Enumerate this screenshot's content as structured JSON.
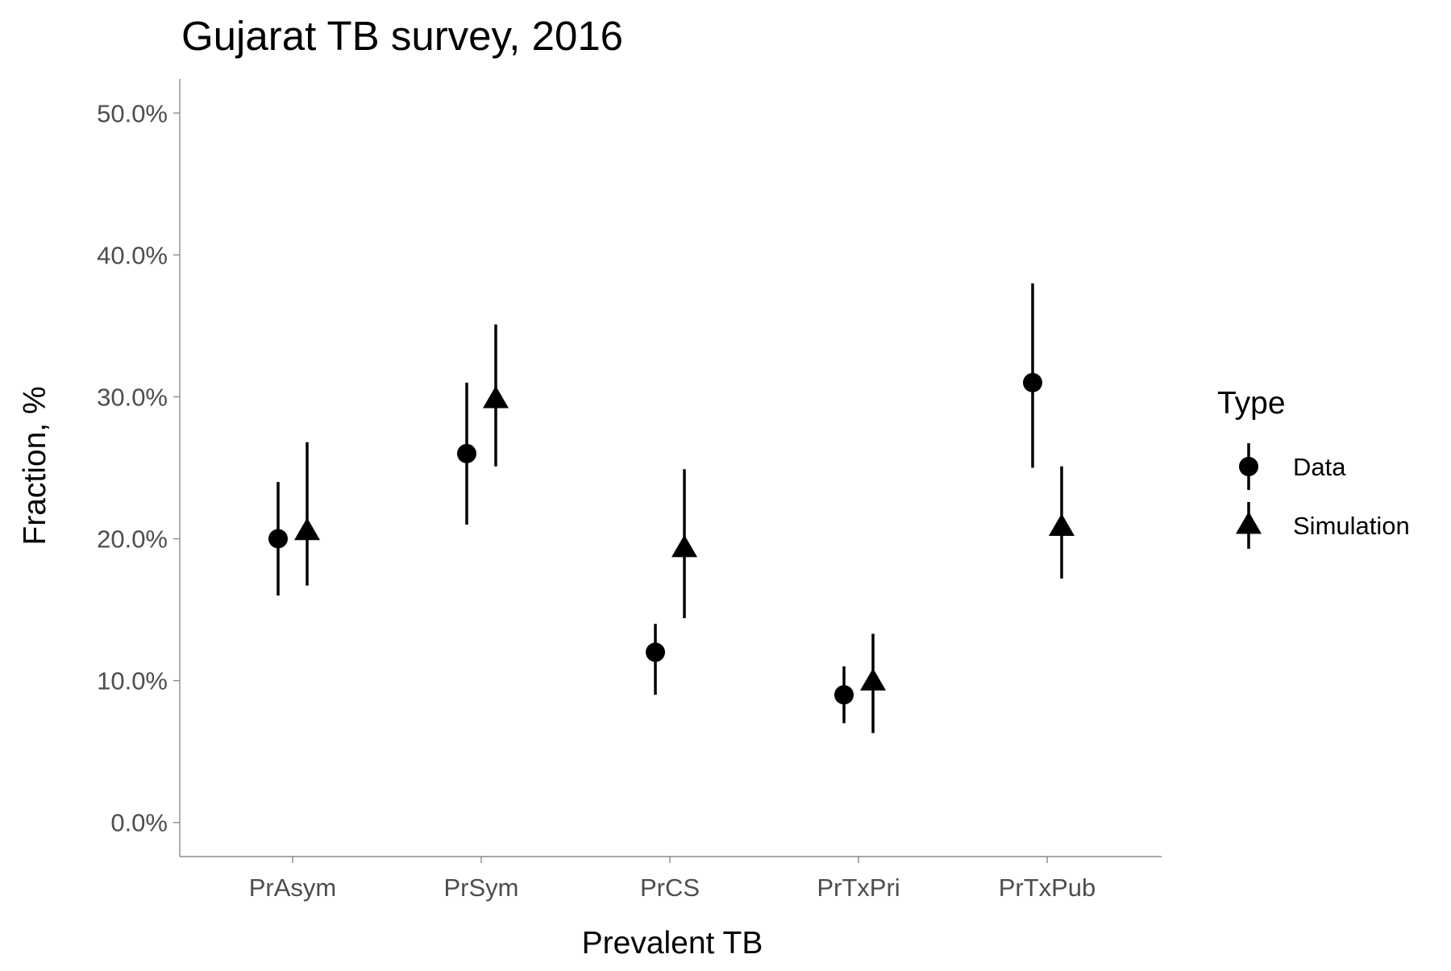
{
  "chart_data": {
    "type": "scatter",
    "title": "Gujarat TB survey, 2016",
    "xlabel": "Prevalent TB",
    "ylabel": "Fraction, %",
    "categories": [
      "PrAsym",
      "PrSym",
      "PrCS",
      "PrTxPri",
      "PrTxPub"
    ],
    "ylim": [
      0,
      0.5
    ],
    "yticks": [
      0,
      0.1,
      0.2,
      0.3,
      0.4,
      0.5
    ],
    "ytick_labels": [
      "0.0%",
      "10.0%",
      "20.0%",
      "30.0%",
      "40.0%",
      "50.0%"
    ],
    "grid": false,
    "legend": {
      "title": "Type",
      "position": "right"
    },
    "series": [
      {
        "name": "Data",
        "marker": "circle",
        "values": [
          0.2,
          0.26,
          0.12,
          0.09,
          0.31
        ],
        "lower": [
          0.16,
          0.21,
          0.09,
          0.07,
          0.25
        ],
        "upper": [
          0.24,
          0.31,
          0.14,
          0.11,
          0.38
        ]
      },
      {
        "name": "Simulation",
        "marker": "triangle",
        "values": [
          0.205,
          0.298,
          0.193,
          0.099,
          0.208
        ],
        "lower": [
          0.167,
          0.251,
          0.144,
          0.063,
          0.172
        ],
        "upper": [
          0.268,
          0.351,
          0.249,
          0.133,
          0.251
        ]
      }
    ],
    "colors": {
      "marks": "#000000",
      "axis": "#8c8c8c",
      "tick_text": "#4d4d4d",
      "background": "#ffffff"
    }
  }
}
